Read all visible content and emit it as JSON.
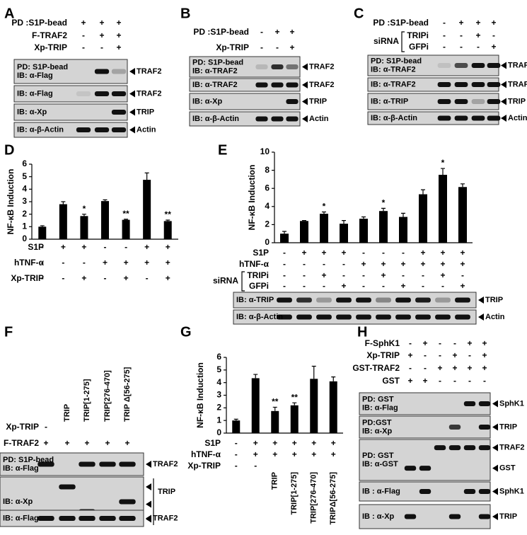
{
  "chart_data": [
    {
      "panel": "D",
      "type": "bar",
      "y_label": "NF-κB Induction",
      "color": "#000000",
      "values": [
        1.0,
        2.8,
        1.85,
        3.05,
        1.55,
        4.75,
        1.45
      ],
      "errors": [
        0.08,
        0.2,
        0.15,
        0.1,
        0.05,
        0.55,
        0.08
      ],
      "annotations": [
        null,
        null,
        "*",
        null,
        "**",
        null,
        "**"
      ],
      "ylim": [
        0,
        6
      ],
      "yticks": [
        0,
        1,
        2,
        3,
        4,
        5,
        6
      ],
      "conditions": [
        {
          "name": "S1P",
          "signs": [
            "-",
            "+",
            "+",
            "-",
            "-",
            "+",
            "+"
          ]
        },
        {
          "name": "hTNF-α",
          "signs": [
            "-",
            "-",
            "-",
            "+",
            "+",
            "+",
            "+"
          ]
        },
        {
          "name": "Xp-TRIP",
          "signs": [
            "-",
            "-",
            "+",
            "-",
            "+",
            "-",
            "+"
          ]
        }
      ]
    },
    {
      "panel": "E",
      "type": "bar",
      "y_label": "NF-κB Induction",
      "color": "#000000",
      "values": [
        1.0,
        2.4,
        3.2,
        2.1,
        2.65,
        3.5,
        2.85,
        5.35,
        7.5,
        6.15
      ],
      "errors": [
        0.25,
        0.05,
        0.2,
        0.35,
        0.2,
        0.3,
        0.4,
        0.5,
        0.7,
        0.35
      ],
      "annotations": [
        null,
        null,
        "*",
        null,
        null,
        "*",
        null,
        null,
        "*",
        null
      ],
      "ylim": [
        0,
        10
      ],
      "yticks": [
        0,
        2,
        4,
        6,
        8,
        10
      ],
      "group_label": "siRNA",
      "conditions": [
        {
          "name": "S1P",
          "signs": [
            "-",
            "+",
            "+",
            "+",
            "-",
            "-",
            "-",
            "+",
            "+",
            "+"
          ]
        },
        {
          "name": "hTNF-α",
          "signs": [
            "-",
            "-",
            "-",
            "-",
            "+",
            "+",
            "+",
            "+",
            "+",
            "+"
          ]
        },
        {
          "name": "TRIPi",
          "signs": [
            "-",
            "-",
            "+",
            "-",
            "-",
            "+",
            "-",
            "-",
            "+",
            "-"
          ]
        },
        {
          "name": "GFPi",
          "signs": [
            "-",
            "-",
            "-",
            "+",
            "-",
            "-",
            "+",
            "-",
            "-",
            "+"
          ]
        }
      ],
      "strips": [
        {
          "ib": [
            "IB: α-TRIP"
          ],
          "targets": [
            "TRIP"
          ]
        },
        {
          "ib": [
            "IB: α-β-Actin"
          ],
          "targets": [
            "Actin"
          ]
        }
      ]
    },
    {
      "panel": "G",
      "type": "bar",
      "y_label": "NF-κB Induction",
      "color": "#000000",
      "values": [
        1.0,
        4.35,
        1.75,
        2.2,
        4.3,
        4.1
      ],
      "errors": [
        0.1,
        0.3,
        0.3,
        0.2,
        1.0,
        0.35
      ],
      "annotations": [
        null,
        null,
        "**",
        "**",
        null,
        null
      ],
      "ylim": [
        0,
        6
      ],
      "yticks": [
        0,
        1,
        2,
        3,
        4,
        5,
        6
      ],
      "conditions": [
        {
          "name": "S1P",
          "signs": [
            "-",
            "+",
            "+",
            "+",
            "+",
            "+"
          ]
        },
        {
          "name": "hTNF-α",
          "signs": [
            "-",
            "+",
            "+",
            "+",
            "+",
            "+"
          ]
        },
        {
          "name": "Xp-TRIP",
          "signs": [
            "-",
            "-",
            "TRIP",
            "TRIP[1-275]",
            "TRIP[276-470]",
            "TRIPΔ[56-275]"
          ]
        }
      ]
    }
  ],
  "blots": [
    {
      "panel": "A",
      "conditions": [
        {
          "name": "PD :S1P-bead",
          "signs": [
            "+",
            "+",
            "+"
          ]
        },
        {
          "name": "F-TRAF2",
          "signs": [
            "-",
            "+",
            "+"
          ]
        },
        {
          "name": "Xp-TRIP",
          "signs": [
            "-",
            "-",
            "+"
          ]
        }
      ],
      "strips": [
        {
          "ib": [
            "PD: S1P-bead",
            "IB: α-Flag"
          ],
          "targets": [
            "TRAF2"
          ]
        },
        {
          "ib": [
            "IB: α-Flag"
          ],
          "targets": [
            "TRAF2"
          ]
        },
        {
          "ib": [
            "IB: α-Xp"
          ],
          "targets": [
            "TRIP"
          ]
        },
        {
          "ib": [
            "IB: α-β-Actin"
          ],
          "targets": [
            "Actin"
          ]
        }
      ]
    },
    {
      "panel": "B",
      "conditions": [
        {
          "name": "PD :S1P-bead",
          "signs": [
            "-",
            "+",
            "+"
          ]
        },
        {
          "name": "Xp-TRIP",
          "signs": [
            "-",
            "-",
            "+"
          ]
        }
      ],
      "strips": [
        {
          "ib": [
            "PD: S1P-bead",
            "IB: α-TRAF2"
          ],
          "targets": [
            "TRAF2"
          ]
        },
        {
          "ib": [
            "IB: α-TRAF2"
          ],
          "targets": [
            "TRAF2"
          ]
        },
        {
          "ib": [
            "IB: α-Xp"
          ],
          "targets": [
            "TRIP"
          ]
        },
        {
          "ib": [
            "IB: α-β-Actin"
          ],
          "targets": [
            "Actin"
          ]
        }
      ]
    },
    {
      "panel": "C",
      "group_label": "siRNA",
      "conditions": [
        {
          "name": "PD :S1P-bead",
          "signs": [
            "-",
            "+",
            "+",
            "+"
          ]
        },
        {
          "name": "TRIPi",
          "signs": [
            "-",
            "-",
            "+",
            "-"
          ]
        },
        {
          "name": "GFPi",
          "signs": [
            "-",
            "-",
            "-",
            "+"
          ]
        }
      ],
      "strips": [
        {
          "ib": [
            "PD: S1P-bead",
            "IB: α-TRAF2"
          ],
          "targets": [
            "TRAF2"
          ]
        },
        {
          "ib": [
            "IB: α-TRAF2"
          ],
          "targets": [
            "TRAF2"
          ]
        },
        {
          "ib": [
            "IB: α-TRIP"
          ],
          "targets": [
            "TRIP"
          ]
        },
        {
          "ib": [
            "IB: α-β-Actin"
          ],
          "targets": [
            "Actin"
          ]
        }
      ]
    },
    {
      "panel": "F",
      "conditions": [
        {
          "name": "Xp-TRIP",
          "signs": [
            "-",
            "TRIP",
            "TRIP[1-275]",
            "TRIP[276-470]",
            "TRIP Δ[56-275]"
          ]
        },
        {
          "name": "F-TRAF2",
          "signs": [
            "+",
            "+",
            "+",
            "+",
            "+"
          ]
        }
      ],
      "strips": [
        {
          "ib": [
            "PD: S1P-bead",
            "IB: α-Flag"
          ],
          "targets": [
            "TRAF2"
          ]
        },
        {
          "ib": [
            "IB: α-Xp"
          ],
          "targets": [
            "TRIP"
          ]
        },
        {
          "ib": [
            "IB: α-Flag"
          ],
          "targets": [
            "TRAF2"
          ]
        }
      ]
    },
    {
      "panel": "H",
      "conditions": [
        {
          "name": "F-SphK1",
          "signs": [
            "-",
            "+",
            "-",
            "-",
            "+",
            "+"
          ]
        },
        {
          "name": "Xp-TRIP",
          "signs": [
            "+",
            "-",
            "-",
            "+",
            "-",
            "+"
          ]
        },
        {
          "name": "GST-TRAF2",
          "signs": [
            "-",
            "-",
            "+",
            "+",
            "+",
            "+"
          ]
        },
        {
          "name": "GST",
          "signs": [
            "+",
            "+",
            "-",
            "-",
            "-",
            "-"
          ]
        }
      ],
      "strips": [
        {
          "ib": [
            "PD: GST",
            "IB: α-Flag"
          ],
          "targets": [
            "SphK1"
          ]
        },
        {
          "ib": [
            "PD:GST",
            "IB: α-Xp"
          ],
          "targets": [
            "TRIP"
          ]
        },
        {
          "ib": [
            "PD: GST",
            "IB: α-GST"
          ],
          "targets": [
            "TRAF2",
            "GST"
          ]
        },
        {
          "ib": [
            "IB : α-Flag"
          ],
          "targets": [
            "SphK1"
          ]
        },
        {
          "ib": [
            "IB : α-Xp"
          ],
          "targets": [
            "TRIP"
          ]
        }
      ]
    }
  ]
}
